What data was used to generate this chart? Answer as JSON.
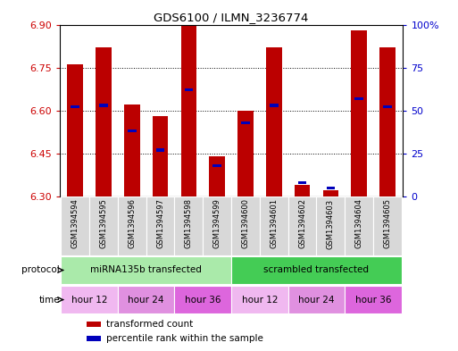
{
  "title": "GDS6100 / ILMN_3236774",
  "samples": [
    "GSM1394594",
    "GSM1394595",
    "GSM1394596",
    "GSM1394597",
    "GSM1394598",
    "GSM1394599",
    "GSM1394600",
    "GSM1394601",
    "GSM1394602",
    "GSM1394603",
    "GSM1394604",
    "GSM1394605"
  ],
  "red_values": [
    6.76,
    6.82,
    6.62,
    6.58,
    6.9,
    6.44,
    6.6,
    6.82,
    6.34,
    6.32,
    6.88,
    6.82
  ],
  "blue_percentiles": [
    52,
    53,
    38,
    27,
    62,
    18,
    43,
    53,
    8,
    5,
    57,
    52
  ],
  "ylim_left": [
    6.3,
    6.9
  ],
  "ylim_right": [
    0,
    100
  ],
  "yticks_left": [
    6.3,
    6.45,
    6.6,
    6.75,
    6.9
  ],
  "yticks_right": [
    0,
    25,
    50,
    75,
    100
  ],
  "ytick_labels_right": [
    "0",
    "25",
    "50",
    "75",
    "100%"
  ],
  "bar_color": "#bb0000",
  "blue_color": "#0000bb",
  "bar_width": 0.55,
  "protocol_groups": [
    {
      "label": "miRNA135b transfected",
      "start": 0,
      "end": 5,
      "color": "#aaeaaa"
    },
    {
      "label": "scrambled transfected",
      "start": 6,
      "end": 11,
      "color": "#44cc55"
    }
  ],
  "time_groups": [
    {
      "label": "hour 12",
      "start": 0,
      "end": 1,
      "color": "#f0b8f0"
    },
    {
      "label": "hour 24",
      "start": 2,
      "end": 3,
      "color": "#e090e0"
    },
    {
      "label": "hour 36",
      "start": 4,
      "end": 5,
      "color": "#dd66dd"
    },
    {
      "label": "hour 12",
      "start": 6,
      "end": 7,
      "color": "#f0b8f0"
    },
    {
      "label": "hour 24",
      "start": 8,
      "end": 9,
      "color": "#e090e0"
    },
    {
      "label": "hour 36",
      "start": 10,
      "end": 11,
      "color": "#dd66dd"
    }
  ],
  "legend_items": [
    {
      "label": "transformed count",
      "color": "#bb0000"
    },
    {
      "label": "percentile rank within the sample",
      "color": "#0000bb"
    }
  ],
  "grid_color": "black",
  "grid_linestyle": ":",
  "grid_linewidth": 0.7,
  "tick_color_left": "#cc0000",
  "tick_color_right": "#0000cc",
  "sample_box_color": "#d8d8d8",
  "fig_width": 5.13,
  "fig_height": 3.93
}
